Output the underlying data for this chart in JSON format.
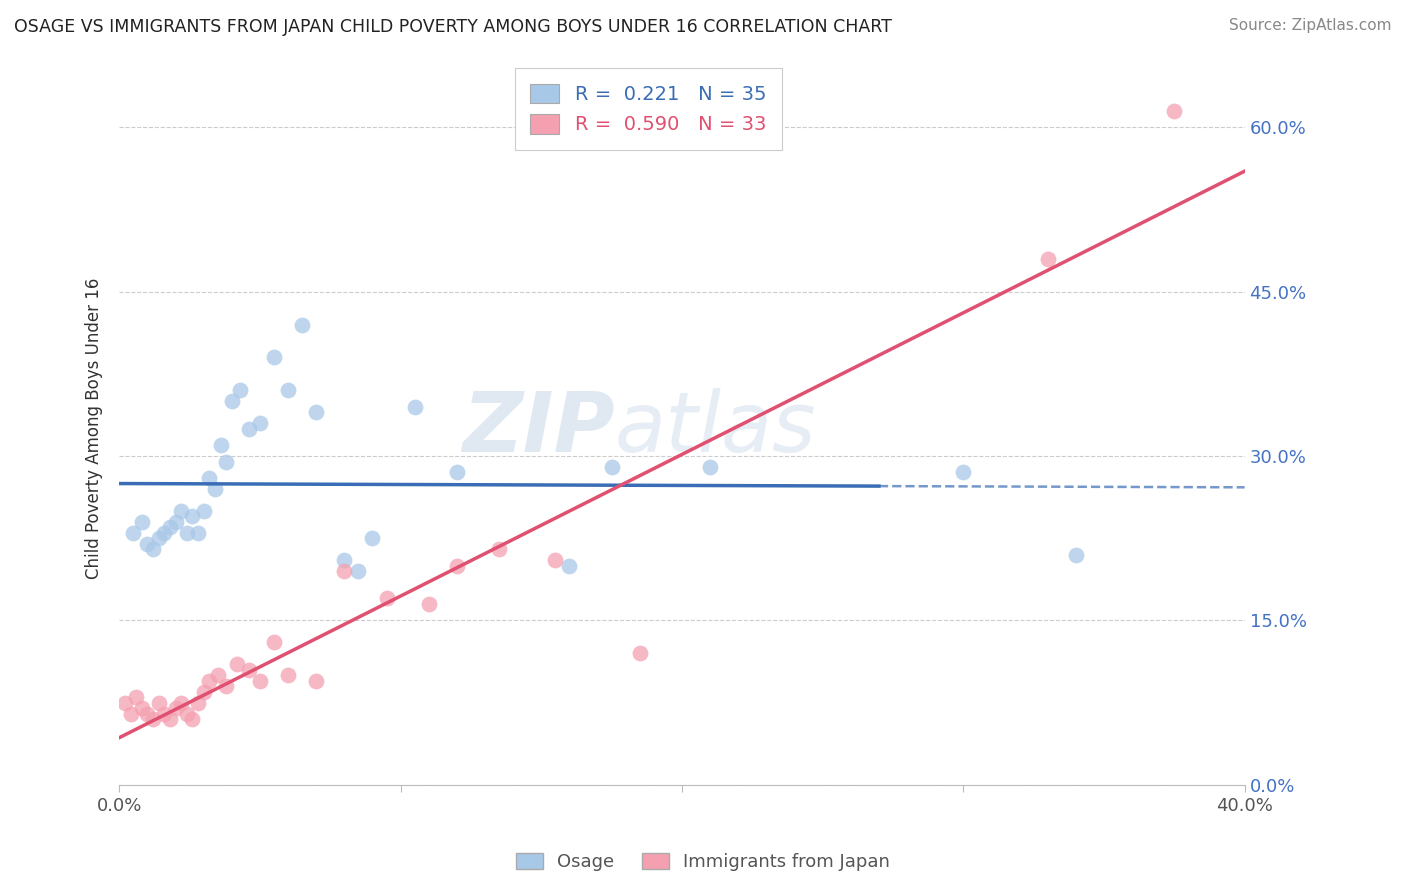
{
  "title": "OSAGE VS IMMIGRANTS FROM JAPAN CHILD POVERTY AMONG BOYS UNDER 16 CORRELATION CHART",
  "source": "Source: ZipAtlas.com",
  "ylabel": "Child Poverty Among Boys Under 16",
  "xlim": [
    0.0,
    0.4
  ],
  "ylim": [
    0.0,
    0.65
  ],
  "yticks": [
    0.0,
    0.15,
    0.3,
    0.45,
    0.6
  ],
  "ytick_labels": [
    "0.0%",
    "15.0%",
    "30.0%",
    "45.0%",
    "60.0%"
  ],
  "xticks": [
    0.0,
    0.1,
    0.2,
    0.3,
    0.4
  ],
  "xtick_labels": [
    "0.0%",
    "",
    "",
    "",
    "40.0%"
  ],
  "osage_R": 0.221,
  "osage_N": 35,
  "japan_R": 0.59,
  "japan_N": 33,
  "osage_color": "#a8c8e8",
  "japan_color": "#f4a0b0",
  "osage_line_color": "#3a6db5",
  "japan_line_color": "#e05070",
  "legend_label_osage": "Osage",
  "legend_label_japan": "Immigrants from Japan",
  "osage_x": [
    0.005,
    0.008,
    0.01,
    0.012,
    0.014,
    0.016,
    0.018,
    0.02,
    0.022,
    0.024,
    0.026,
    0.028,
    0.03,
    0.032,
    0.034,
    0.036,
    0.038,
    0.04,
    0.043,
    0.046,
    0.05,
    0.055,
    0.06,
    0.065,
    0.07,
    0.08,
    0.085,
    0.09,
    0.105,
    0.12,
    0.16,
    0.175,
    0.21,
    0.3,
    0.34
  ],
  "osage_y": [
    0.23,
    0.24,
    0.22,
    0.215,
    0.225,
    0.23,
    0.235,
    0.24,
    0.25,
    0.23,
    0.245,
    0.23,
    0.25,
    0.28,
    0.27,
    0.31,
    0.295,
    0.35,
    0.36,
    0.325,
    0.33,
    0.39,
    0.36,
    0.42,
    0.34,
    0.205,
    0.195,
    0.225,
    0.345,
    0.285,
    0.2,
    0.29,
    0.29,
    0.285,
    0.21
  ],
  "japan_x": [
    0.002,
    0.004,
    0.006,
    0.008,
    0.01,
    0.012,
    0.014,
    0.016,
    0.018,
    0.02,
    0.022,
    0.024,
    0.026,
    0.028,
    0.03,
    0.032,
    0.035,
    0.038,
    0.042,
    0.046,
    0.05,
    0.055,
    0.06,
    0.07,
    0.08,
    0.095,
    0.11,
    0.12,
    0.135,
    0.155,
    0.185,
    0.33,
    0.375
  ],
  "japan_y": [
    0.075,
    0.065,
    0.08,
    0.07,
    0.065,
    0.06,
    0.075,
    0.065,
    0.06,
    0.07,
    0.075,
    0.065,
    0.06,
    0.075,
    0.085,
    0.095,
    0.1,
    0.09,
    0.11,
    0.105,
    0.095,
    0.13,
    0.1,
    0.095,
    0.195,
    0.17,
    0.165,
    0.2,
    0.215,
    0.205,
    0.12,
    0.48,
    0.615
  ]
}
